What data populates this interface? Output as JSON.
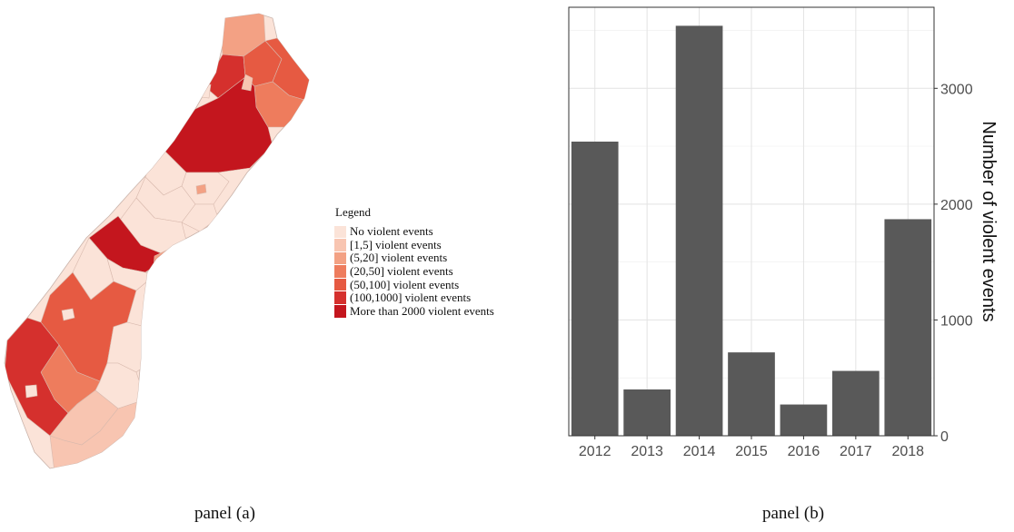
{
  "map": {
    "legend_title": "Legend",
    "legend_items": [
      {
        "label": "No violent events",
        "color": "#fbe3d8"
      },
      {
        "label": "[1,5] violent events",
        "color": "#f8c5b1"
      },
      {
        "label": "(5,20] violent events",
        "color": "#f3a184"
      },
      {
        "label": "(20,50] violent events",
        "color": "#ee7c5d"
      },
      {
        "label": "(50,100] violent events",
        "color": "#e65a42"
      },
      {
        "label": "(100,1000] violent events",
        "color": "#d5302d"
      },
      {
        "label": "More than 2000 violent events",
        "color": "#c4161e"
      }
    ]
  },
  "chart_data": {
    "type": "bar",
    "categories": [
      "2012",
      "2013",
      "2014",
      "2015",
      "2016",
      "2017",
      "2018"
    ],
    "values": [
      2540,
      400,
      3540,
      720,
      270,
      560,
      1870
    ],
    "ylabel": "Number of violent events",
    "ylim": [
      0,
      3700
    ],
    "yticks": [
      0,
      1000,
      2000,
      3000
    ],
    "y_axis_side": "right",
    "grid": true,
    "bar_color": "#595959"
  },
  "captions": {
    "panel_a": "panel (a)",
    "panel_b": "panel (b)"
  }
}
